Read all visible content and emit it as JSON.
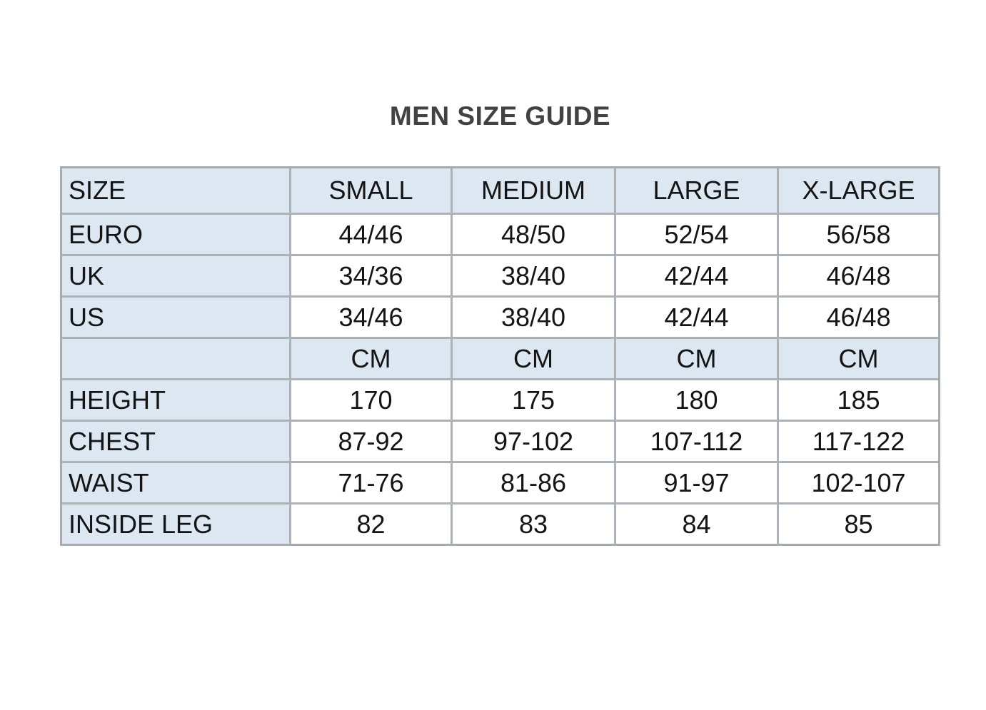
{
  "page": {
    "title": "MEN SIZE GUIDE"
  },
  "table": {
    "columns": [
      "SIZE",
      "SMALL",
      "MEDIUM",
      "LARGE",
      "X-LARGE"
    ],
    "rows": [
      {
        "label": "EURO",
        "values": [
          "44/46",
          "48/50",
          "52/54",
          "56/58"
        ]
      },
      {
        "label": "UK",
        "values": [
          "34/36",
          "38/40",
          "42/44",
          "46/48"
        ]
      },
      {
        "label": "US",
        "values": [
          "34/46",
          "38/40",
          "42/44",
          "46/48"
        ]
      },
      {
        "label": "",
        "values": [
          "CM",
          "CM",
          "CM",
          "CM"
        ]
      },
      {
        "label": "HEIGHT",
        "values": [
          "170",
          "175",
          "180",
          "185"
        ]
      },
      {
        "label": "CHEST",
        "values": [
          "87-92",
          "97-102",
          "107-112",
          "117-122"
        ]
      },
      {
        "label": "WAIST",
        "values": [
          "71-76",
          "81-86",
          "91-97",
          "102-107"
        ]
      },
      {
        "label": "INSIDE LEG",
        "values": [
          "82",
          "83",
          "84",
          "85"
        ]
      }
    ]
  },
  "colors": {
    "shaded_cell_fill": "#dce7f2",
    "grid_line": "#adb2b6",
    "title_text": "#424242",
    "cell_text": "#141414",
    "background": "#ffffff"
  },
  "chart_data": {
    "type": "table",
    "title": "MEN SIZE GUIDE",
    "columns": [
      "SIZE",
      "SMALL",
      "MEDIUM",
      "LARGE",
      "X-LARGE"
    ],
    "rows": [
      [
        "EURO",
        "44/46",
        "48/50",
        "52/54",
        "56/58"
      ],
      [
        "UK",
        "34/36",
        "38/40",
        "42/44",
        "46/48"
      ],
      [
        "US",
        "34/46",
        "38/40",
        "42/44",
        "46/48"
      ],
      [
        "",
        "CM",
        "CM",
        "CM",
        "CM"
      ],
      [
        "HEIGHT",
        "170",
        "175",
        "180",
        "185"
      ],
      [
        "CHEST",
        "87-92",
        "97-102",
        "107-112",
        "117-122"
      ],
      [
        "WAIST",
        "71-76",
        "81-86",
        "91-97",
        "102-107"
      ],
      [
        "INSIDE LEG",
        "82",
        "83",
        "84",
        "85"
      ]
    ]
  }
}
